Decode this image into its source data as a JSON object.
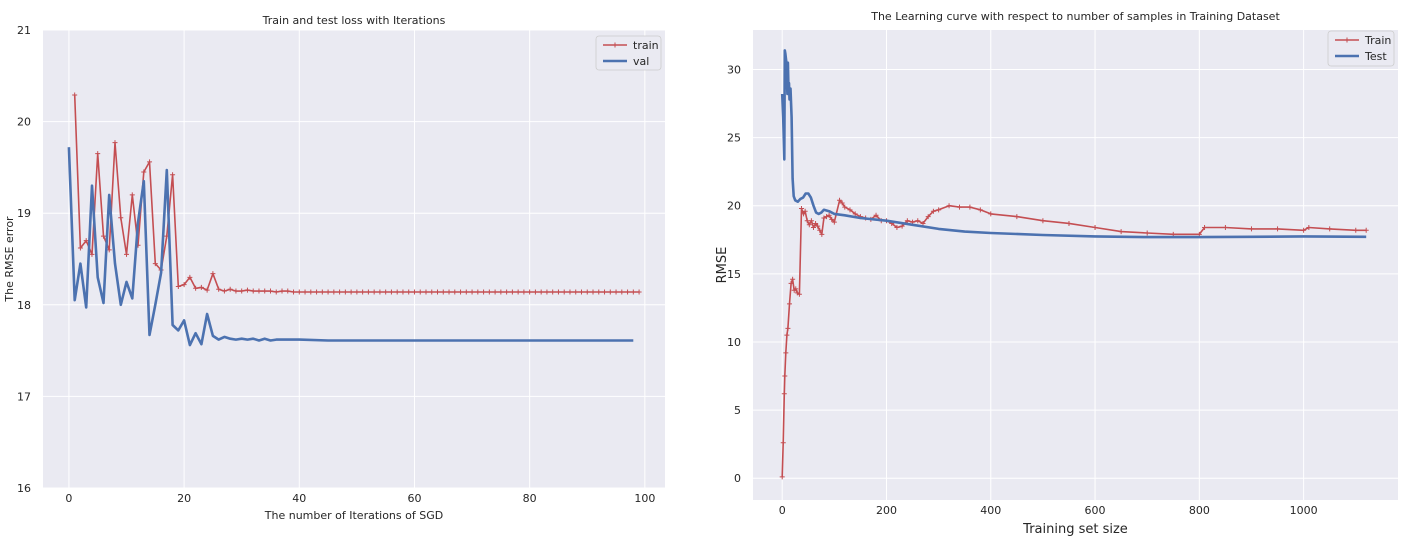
{
  "chart_data": [
    {
      "type": "line",
      "title": "Train and test loss with Iterations",
      "xlabel": "The number of Iterations of SGD",
      "ylabel": "The RMSE error",
      "xlim": [
        -4.5,
        103.5
      ],
      "ylim": [
        16,
        21
      ],
      "xticks": [
        0,
        20,
        40,
        60,
        80,
        100
      ],
      "yticks": [
        16,
        17,
        18,
        19,
        20,
        21
      ],
      "grid": true,
      "legend_position": "top-right",
      "series": [
        {
          "name": "train",
          "color": "#c44e52",
          "marker": "+",
          "x": [
            1,
            2,
            3,
            4,
            5,
            6,
            7,
            8,
            9,
            10,
            11,
            12,
            13,
            14,
            15,
            16,
            17,
            18,
            19,
            20,
            21,
            22,
            23,
            24,
            25,
            26,
            27,
            28,
            29,
            30,
            31,
            32,
            33,
            34,
            35,
            36,
            37,
            38,
            39,
            40,
            41,
            42,
            43,
            44,
            45,
            46,
            47,
            48,
            49,
            50,
            51,
            52,
            53,
            54,
            55,
            56,
            57,
            58,
            59,
            60,
            61,
            62,
            63,
            64,
            65,
            66,
            67,
            68,
            69,
            70,
            71,
            72,
            73,
            74,
            75,
            76,
            77,
            78,
            79,
            80,
            81,
            82,
            83,
            84,
            85,
            86,
            87,
            88,
            89,
            90,
            91,
            92,
            93,
            94,
            95,
            96,
            97,
            98,
            99
          ],
          "y": [
            20.29,
            18.62,
            18.7,
            18.55,
            19.65,
            18.75,
            18.6,
            19.77,
            18.95,
            18.55,
            19.2,
            18.65,
            19.45,
            19.56,
            18.45,
            18.38,
            18.75,
            19.42,
            18.2,
            18.22,
            18.3,
            18.18,
            18.19,
            18.16,
            18.34,
            18.17,
            18.15,
            18.17,
            18.15,
            18.15,
            18.16,
            18.15,
            18.15,
            18.15,
            18.15,
            18.14,
            18.15,
            18.15,
            18.14,
            18.14,
            18.14,
            18.14,
            18.14,
            18.14,
            18.14,
            18.14,
            18.14,
            18.14,
            18.14,
            18.14,
            18.14,
            18.14,
            18.14,
            18.14,
            18.14,
            18.14,
            18.14,
            18.14,
            18.14,
            18.14,
            18.14,
            18.14,
            18.14,
            18.14,
            18.14,
            18.14,
            18.14,
            18.14,
            18.14,
            18.14,
            18.14,
            18.14,
            18.14,
            18.14,
            18.14,
            18.14,
            18.14,
            18.14,
            18.14,
            18.14,
            18.14,
            18.14,
            18.14,
            18.14,
            18.14,
            18.14,
            18.14,
            18.14,
            18.14,
            18.14,
            18.14,
            18.14,
            18.14,
            18.14,
            18.14,
            18.14,
            18.14,
            18.14,
            18.14
          ]
        },
        {
          "name": "val",
          "color": "#4c72b0",
          "x": [
            0,
            1,
            2,
            3,
            4,
            5,
            6,
            7,
            8,
            9,
            10,
            11,
            12,
            13,
            14,
            15,
            16,
            17,
            18,
            19,
            20,
            21,
            22,
            23,
            24,
            25,
            26,
            27,
            28,
            29,
            30,
            31,
            32,
            33,
            34,
            35,
            36,
            37,
            38,
            39,
            40,
            45,
            50,
            60,
            70,
            80,
            90,
            98
          ],
          "y": [
            19.72,
            18.05,
            18.45,
            17.97,
            19.3,
            18.3,
            18.02,
            19.2,
            18.45,
            18.0,
            18.25,
            18.07,
            18.9,
            19.35,
            17.67,
            18.0,
            18.35,
            19.47,
            17.78,
            17.72,
            17.83,
            17.56,
            17.69,
            17.57,
            17.9,
            17.66,
            17.62,
            17.65,
            17.63,
            17.62,
            17.63,
            17.62,
            17.63,
            17.61,
            17.63,
            17.61,
            17.62,
            17.62,
            17.62,
            17.62,
            17.62,
            17.61,
            17.61,
            17.61,
            17.61,
            17.61,
            17.61,
            17.61
          ]
        }
      ]
    },
    {
      "type": "line",
      "title": "The Learning curve with respect to number of samples in Training Dataset",
      "xlabel": "Training set size",
      "ylabel": "RMSE",
      "xlim": [
        -56,
        1181
      ],
      "ylim": [
        -1.6,
        32.9
      ],
      "xticks": [
        0,
        200,
        400,
        600,
        800,
        1000
      ],
      "yticks": [
        0,
        5,
        10,
        15,
        20,
        25,
        30
      ],
      "grid": true,
      "legend_position": "top-right",
      "series": [
        {
          "name": "Train",
          "color": "#c44e52",
          "marker": "+",
          "x": [
            0,
            2,
            4,
            5,
            7,
            9,
            11,
            14,
            17,
            20,
            23,
            26,
            29,
            33,
            37,
            41,
            44,
            48,
            52,
            56,
            60,
            64,
            68,
            72,
            76,
            80,
            85,
            90,
            95,
            100,
            110,
            115,
            120,
            130,
            140,
            150,
            160,
            170,
            180,
            190,
            200,
            210,
            220,
            230,
            240,
            250,
            260,
            270,
            280,
            290,
            300,
            320,
            340,
            360,
            380,
            400,
            450,
            500,
            550,
            600,
            650,
            700,
            750,
            800,
            810,
            850,
            900,
            950,
            1000,
            1010,
            1050,
            1100,
            1120
          ],
          "y": [
            0.1,
            2.6,
            6.2,
            7.5,
            9.2,
            10.5,
            11.0,
            12.8,
            14.3,
            14.6,
            13.8,
            13.9,
            13.6,
            13.5,
            19.8,
            19.4,
            19.6,
            18.9,
            18.6,
            18.9,
            18.4,
            18.7,
            18.5,
            18.2,
            17.9,
            19.1,
            19.2,
            19.3,
            19.0,
            18.8,
            20.4,
            20.2,
            19.9,
            19.7,
            19.4,
            19.2,
            19.1,
            19.0,
            19.3,
            18.9,
            18.9,
            18.7,
            18.4,
            18.5,
            18.9,
            18.8,
            18.9,
            18.7,
            19.2,
            19.6,
            19.7,
            20.0,
            19.9,
            19.9,
            19.7,
            19.4,
            19.2,
            18.9,
            18.7,
            18.4,
            18.1,
            18.0,
            17.9,
            17.9,
            18.4,
            18.4,
            18.3,
            18.3,
            18.2,
            18.4,
            18.3,
            18.2,
            18.2
          ]
        },
        {
          "name": "Test",
          "color": "#4c72b0",
          "x": [
            0,
            2,
            4,
            5,
            6,
            8,
            10,
            11,
            12,
            13,
            14,
            16,
            18,
            20,
            22,
            25,
            30,
            35,
            40,
            45,
            50,
            55,
            60,
            65,
            70,
            75,
            80,
            90,
            100,
            120,
            150,
            200,
            250,
            300,
            350,
            400,
            500,
            600,
            700,
            800,
            900,
            1000,
            1120
          ],
          "y": [
            28.2,
            26.5,
            23.4,
            31.4,
            31.2,
            30.5,
            28.2,
            30.5,
            28.5,
            29.0,
            27.8,
            28.6,
            26.5,
            22.0,
            20.7,
            20.4,
            20.3,
            20.5,
            20.6,
            20.9,
            20.9,
            20.6,
            20.0,
            19.5,
            19.4,
            19.5,
            19.7,
            19.6,
            19.4,
            19.3,
            19.1,
            18.9,
            18.6,
            18.3,
            18.1,
            18.0,
            17.85,
            17.75,
            17.7,
            17.7,
            17.72,
            17.75,
            17.72
          ]
        }
      ]
    }
  ]
}
